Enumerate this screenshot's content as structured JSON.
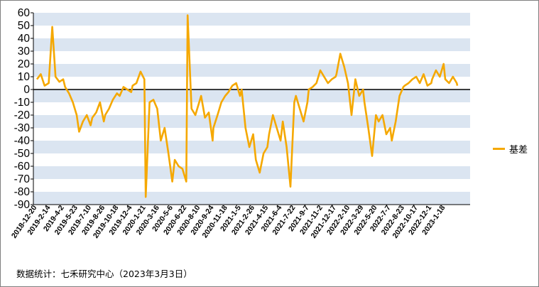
{
  "chart_data": {
    "type": "line",
    "title": "",
    "xlabel": "",
    "ylabel": "",
    "ylim": [
      -90,
      60
    ],
    "yticks": [
      60,
      50,
      40,
      30,
      20,
      10,
      0,
      -10,
      -20,
      -30,
      -40,
      -50,
      -60,
      -70,
      -80,
      -90
    ],
    "x_tick_labels": [
      "2018-12-20",
      "2019-2-14",
      "2019-4-2",
      "2019-5-23",
      "2019-7-10",
      "2019-8-26",
      "2019-10-18",
      "2019-12-4",
      "2020-1-21",
      "2020-3-16",
      "2020-5-6",
      "2020-6-22",
      "2020-8-10",
      "2020-9-24",
      "2020-11-18",
      "2021-1-5",
      "2021-2-26",
      "2021-4-15",
      "2021-6-4",
      "2021-7-22",
      "2021-9-7",
      "2021-11-2",
      "2021-12-17",
      "2022-2-10",
      "2022-3-29",
      "2022-5-20",
      "2022-7-7",
      "2022-8-23",
      "2022-10-17",
      "2022-12-1",
      "2023-1-18"
    ],
    "grid": "alternating horizontal bands",
    "legend_position": "right",
    "series": [
      {
        "name": "基差",
        "color": "#f5a800",
        "x": [
          "2018-12-20",
          "2019-1-3",
          "2019-1-17",
          "2019-2-1",
          "2019-2-14",
          "2019-2-26",
          "2019-3-12",
          "2019-3-26",
          "2019-4-2",
          "2019-4-16",
          "2019-4-30",
          "2019-5-14",
          "2019-5-23",
          "2019-6-6",
          "2019-6-20",
          "2019-7-4",
          "2019-7-10",
          "2019-7-24",
          "2019-8-7",
          "2019-8-21",
          "2019-8-26",
          "2019-9-9",
          "2019-9-23",
          "2019-10-8",
          "2019-10-18",
          "2019-11-1",
          "2019-11-15",
          "2019-11-29",
          "2019-12-4",
          "2019-12-18",
          "2020-1-2",
          "2020-1-16",
          "2020-1-21",
          "2020-2-4",
          "2020-2-18",
          "2020-3-3",
          "2020-3-16",
          "2020-3-30",
          "2020-4-13",
          "2020-4-27",
          "2020-5-6",
          "2020-5-20",
          "2020-6-3",
          "2020-6-17",
          "2020-6-22",
          "2020-7-6",
          "2020-7-20",
          "2020-8-3",
          "2020-8-10",
          "2020-8-24",
          "2020-9-7",
          "2020-9-21",
          "2020-9-24",
          "2020-10-9",
          "2020-10-23",
          "2020-11-6",
          "2020-11-18",
          "2020-12-2",
          "2020-12-16",
          "2020-12-30",
          "2021-1-5",
          "2021-1-19",
          "2021-2-2",
          "2021-2-16",
          "2021-2-26",
          "2021-3-12",
          "2021-3-26",
          "2021-4-9",
          "2021-4-15",
          "2021-4-29",
          "2021-5-13",
          "2021-5-27",
          "2021-6-4",
          "2021-6-18",
          "2021-7-2",
          "2021-7-16",
          "2021-7-22",
          "2021-8-5",
          "2021-8-19",
          "2021-9-2",
          "2021-9-7",
          "2021-9-21",
          "2021-10-5",
          "2021-10-19",
          "2021-11-2",
          "2021-11-16",
          "2021-11-30",
          "2021-12-14",
          "2021-12-17",
          "2021-12-31",
          "2022-1-14",
          "2022-1-28",
          "2022-2-10",
          "2022-2-24",
          "2022-3-10",
          "2022-3-24",
          "2022-3-29",
          "2022-4-12",
          "2022-4-26",
          "2022-5-10",
          "2022-5-20",
          "2022-6-3",
          "2022-6-17",
          "2022-7-1",
          "2022-7-7",
          "2022-7-21",
          "2022-8-4",
          "2022-8-18",
          "2022-8-23",
          "2022-9-6",
          "2022-9-20",
          "2022-10-4",
          "2022-10-17",
          "2022-10-31",
          "2022-11-14",
          "2022-11-28",
          "2022-12-1",
          "2022-12-15",
          "2022-12-29",
          "2023-1-12",
          "2023-1-18",
          "2023-2-1",
          "2023-2-15",
          "2023-3-1",
          "2023-3-3"
        ],
        "values": [
          8,
          12,
          3,
          5,
          49,
          10,
          6,
          8,
          2,
          -3,
          -10,
          -20,
          -33,
          -25,
          -20,
          -28,
          -22,
          -18,
          -10,
          -25,
          -20,
          -15,
          -8,
          -3,
          -5,
          2,
          0,
          -2,
          3,
          5,
          14,
          8,
          -84,
          -10,
          -8,
          -15,
          -40,
          -30,
          -50,
          -72,
          -55,
          -60,
          -62,
          -72,
          58,
          -15,
          -20,
          -10,
          -5,
          -22,
          -18,
          -40,
          -30,
          -20,
          -10,
          -5,
          -2,
          3,
          5,
          -5,
          0,
          -30,
          -45,
          -35,
          -55,
          -65,
          -50,
          -45,
          -35,
          -20,
          -30,
          -40,
          -25,
          -45,
          -76,
          -10,
          -5,
          -15,
          -25,
          -10,
          0,
          2,
          5,
          15,
          10,
          5,
          8,
          10,
          12,
          28,
          18,
          5,
          -20,
          8,
          -5,
          0,
          -10,
          -30,
          -52,
          -20,
          -25,
          -20,
          -35,
          -30,
          -40,
          -25,
          -5,
          2,
          3,
          5,
          8,
          10,
          5,
          12,
          3,
          5,
          8,
          15,
          10,
          20,
          8,
          5,
          10,
          5,
          3
        ]
      }
    ]
  },
  "legend": {
    "label": "基差"
  },
  "source_note": "数据统计：七禾研究中心（2023年3月3日）"
}
